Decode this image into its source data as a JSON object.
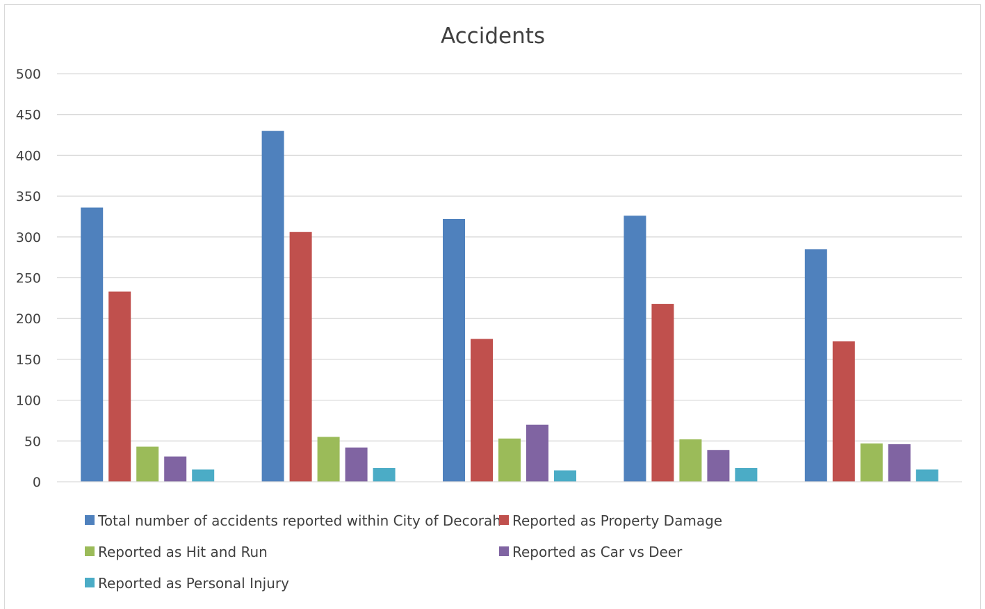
{
  "chart_data": {
    "type": "bar",
    "title": "Accidents",
    "xlabel": "",
    "ylabel": "",
    "categories": [
      "",
      "",
      "",
      "",
      ""
    ],
    "ylim": [
      0,
      500
    ],
    "yticks": [
      0,
      50,
      100,
      150,
      200,
      250,
      300,
      350,
      400,
      450,
      500
    ],
    "grid": true,
    "legend_position": "bottom",
    "series": [
      {
        "name": "Total number of accidents reported within City of Decorah",
        "color": "#4f81bd",
        "values": [
          336,
          430,
          322,
          326,
          285
        ]
      },
      {
        "name": "Reported as Property Damage",
        "color": "#c0504d",
        "values": [
          233,
          306,
          175,
          218,
          172
        ]
      },
      {
        "name": "Reported as Hit and Run",
        "color": "#9bbb59",
        "values": [
          43,
          55,
          53,
          52,
          47
        ]
      },
      {
        "name": "Reported as Car vs Deer",
        "color": "#8064a2",
        "values": [
          31,
          42,
          70,
          39,
          46
        ]
      },
      {
        "name": "Reported as Personal Injury",
        "color": "#4bacc6",
        "values": [
          15,
          17,
          14,
          17,
          15
        ]
      }
    ]
  }
}
